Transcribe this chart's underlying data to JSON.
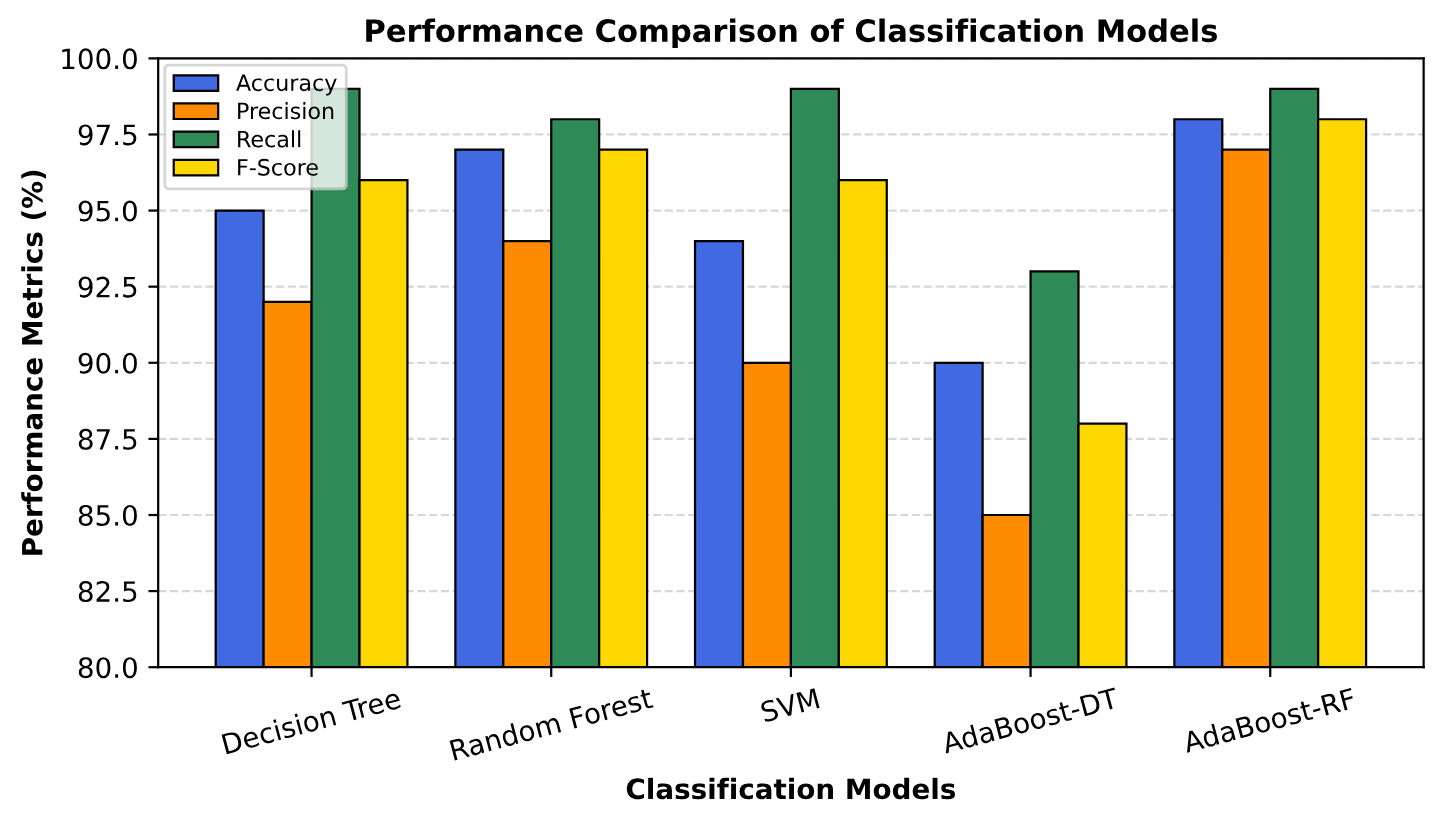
{
  "chart_data": {
    "type": "bar",
    "title": "Performance Comparison of Classification Models",
    "xlabel": "Classification Models",
    "ylabel": "Performance Metrics (%)",
    "categories": [
      "Decision Tree",
      "Random Forest",
      "SVM",
      "AdaBoost-DT",
      "AdaBoost-RF"
    ],
    "series": [
      {
        "name": "Accuracy",
        "color": "#4169e1",
        "values": [
          95,
          97,
          94,
          90,
          98
        ]
      },
      {
        "name": "Precision",
        "color": "#ff8c00",
        "values": [
          92,
          94,
          90,
          85,
          97
        ]
      },
      {
        "name": "Recall",
        "color": "#2e8b57",
        "values": [
          99,
          98,
          99,
          93,
          99
        ]
      },
      {
        "name": "F-Score",
        "color": "#ffd700",
        "values": [
          96,
          97,
          96,
          88,
          98
        ]
      }
    ],
    "ylim": [
      80,
      100
    ],
    "yticks": [
      {
        "value": 80,
        "label": "80.0"
      },
      {
        "value": 82.5,
        "label": "82.5"
      },
      {
        "value": 85,
        "label": "85.0"
      },
      {
        "value": 87.5,
        "label": "87.5"
      },
      {
        "value": 90,
        "label": "90.0"
      },
      {
        "value": 92.5,
        "label": "92.5"
      },
      {
        "value": 95,
        "label": "95.0"
      },
      {
        "value": 97.5,
        "label": "97.5"
      },
      {
        "value": 100,
        "label": "100.0"
      }
    ],
    "grid": "y",
    "legend": "top left"
  }
}
